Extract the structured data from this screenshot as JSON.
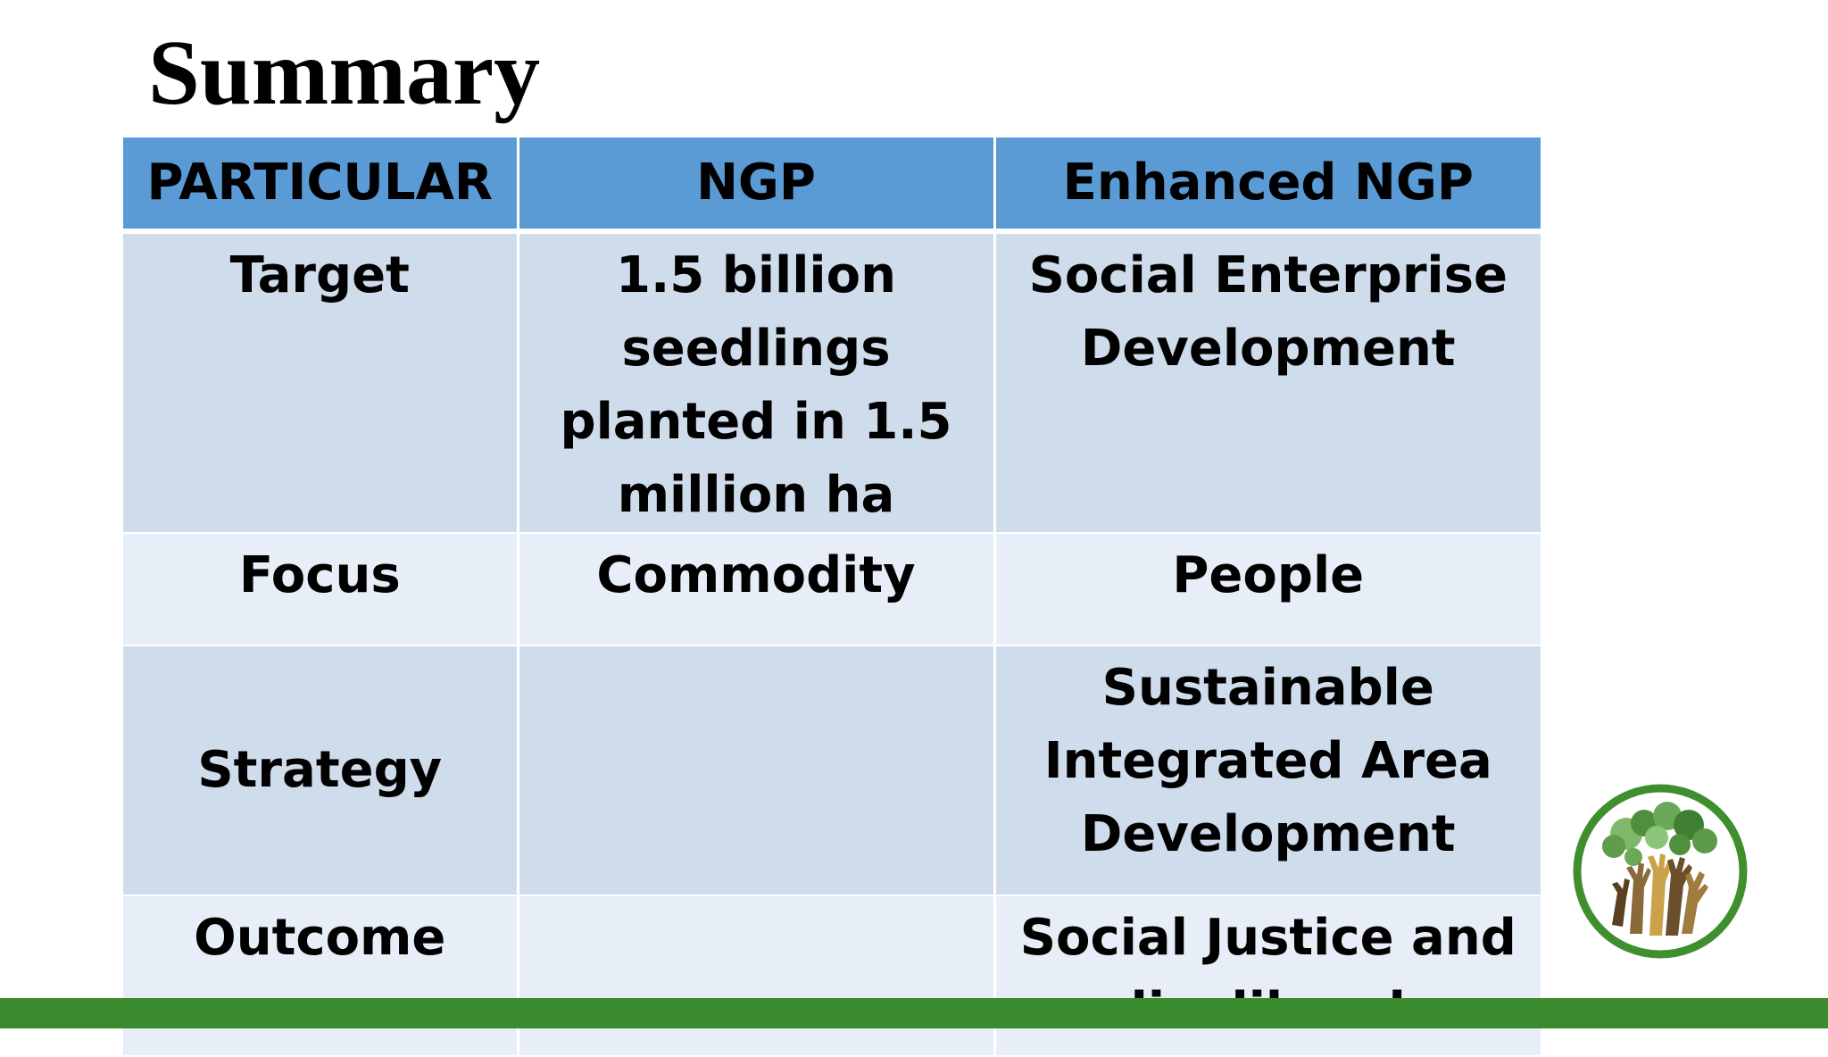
{
  "slide": {
    "title": "Summary"
  },
  "table": {
    "headers": [
      "PARTICULAR",
      "NGP",
      "Enhanced NGP"
    ],
    "rows": [
      {
        "particular": "Target",
        "ngp": "1.5 billion seedlings planted in 1.5 million ha",
        "enhanced": "Social Enterprise Development"
      },
      {
        "particular": "Focus",
        "ngp": "Commodity",
        "enhanced": "People"
      },
      {
        "particular": "Strategy",
        "ngp": "",
        "enhanced": "Sustainable Integrated Area Development"
      },
      {
        "particular": "Outcome",
        "ngp": "",
        "enhanced": "Social Justice and livelihood"
      }
    ]
  },
  "colors": {
    "header_bg": "#5b9bd5",
    "row_dark_bg": "#cfdcec",
    "row_light_bg": "#e8eef7",
    "bottom_bar": "#3a8a2e"
  },
  "icons": {
    "logo": "green-hands-trees-logo-icon"
  }
}
